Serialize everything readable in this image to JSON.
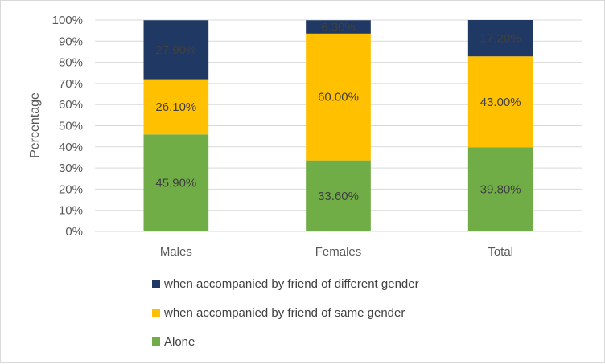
{
  "chart_data": {
    "type": "bar",
    "stacked": true,
    "categories": [
      "Males",
      "Females",
      "Total"
    ],
    "series": [
      {
        "name": "Alone",
        "values": [
          45.9,
          33.6,
          39.8
        ],
        "labels": [
          "45.90%",
          "33.60%",
          "39.80%"
        ],
        "color": "#70ad47"
      },
      {
        "name": "when accompanied by friend of same gender",
        "values": [
          26.1,
          60.0,
          43.0
        ],
        "labels": [
          "26.10%",
          "60.00%",
          "43.00%"
        ],
        "color": "#ffc000"
      },
      {
        "name": "when accompanied by friend of different gender",
        "values": [
          27.9,
          6.3,
          17.2
        ],
        "labels": [
          "27.90%",
          "6.30%",
          "17.20%"
        ],
        "color": "#203864"
      }
    ],
    "ylabel": "Percentage",
    "ylim": [
      0,
      100
    ],
    "yticks": [
      "0%",
      "10%",
      "20%",
      "30%",
      "40%",
      "50%",
      "60%",
      "70%",
      "80%",
      "90%",
      "100%"
    ],
    "grid": true,
    "legend_position": "bottom",
    "legend_order": [
      2,
      1,
      0
    ]
  }
}
